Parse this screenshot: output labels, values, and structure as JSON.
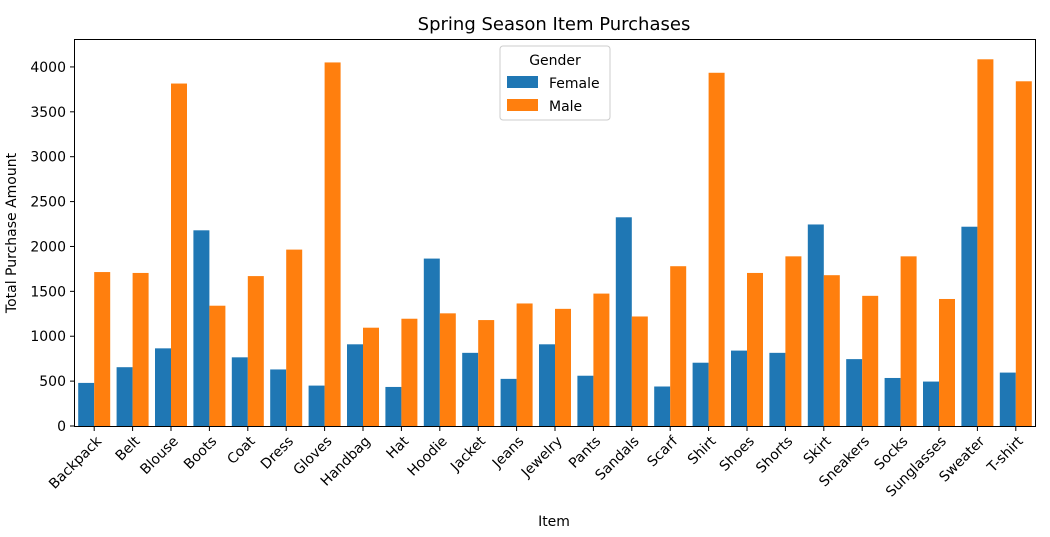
{
  "chart_data": {
    "type": "bar",
    "title": "Spring Season Item Purchases",
    "xlabel": "Item",
    "ylabel": "Total Purchase Amount",
    "ylim": [
      0,
      4300
    ],
    "yticks": [
      "0",
      "500",
      "1000",
      "1500",
      "2000",
      "2500",
      "3000",
      "3500",
      "4000"
    ],
    "grid": false,
    "legend": {
      "title": "Gender",
      "position": "top-center"
    },
    "categories": [
      "Backpack",
      "Belt",
      "Blouse",
      "Boots",
      "Coat",
      "Dress",
      "Gloves",
      "Handbag",
      "Hat",
      "Hoodie",
      "Jacket",
      "Jeans",
      "Jewelry",
      "Pants",
      "Sandals",
      "Scarf",
      "Shirt",
      "Shoes",
      "Shorts",
      "Skirt",
      "Sneakers",
      "Socks",
      "Sunglasses",
      "Sweater",
      "T-shirt"
    ],
    "series": [
      {
        "name": "Female",
        "color": "#1f77b4",
        "values": [
          480,
          655,
          865,
          2180,
          765,
          630,
          450,
          910,
          435,
          1865,
          815,
          525,
          910,
          560,
          2325,
          440,
          705,
          840,
          815,
          2245,
          745,
          535,
          495,
          2220,
          595
        ]
      },
      {
        "name": "Male",
        "color": "#ff7f0e",
        "values": [
          1715,
          1705,
          3815,
          1340,
          1670,
          1965,
          4050,
          1095,
          1195,
          1255,
          1180,
          1365,
          1305,
          1475,
          1220,
          1780,
          3935,
          1705,
          1890,
          1680,
          1450,
          1890,
          1415,
          4085,
          3840
        ]
      }
    ]
  }
}
